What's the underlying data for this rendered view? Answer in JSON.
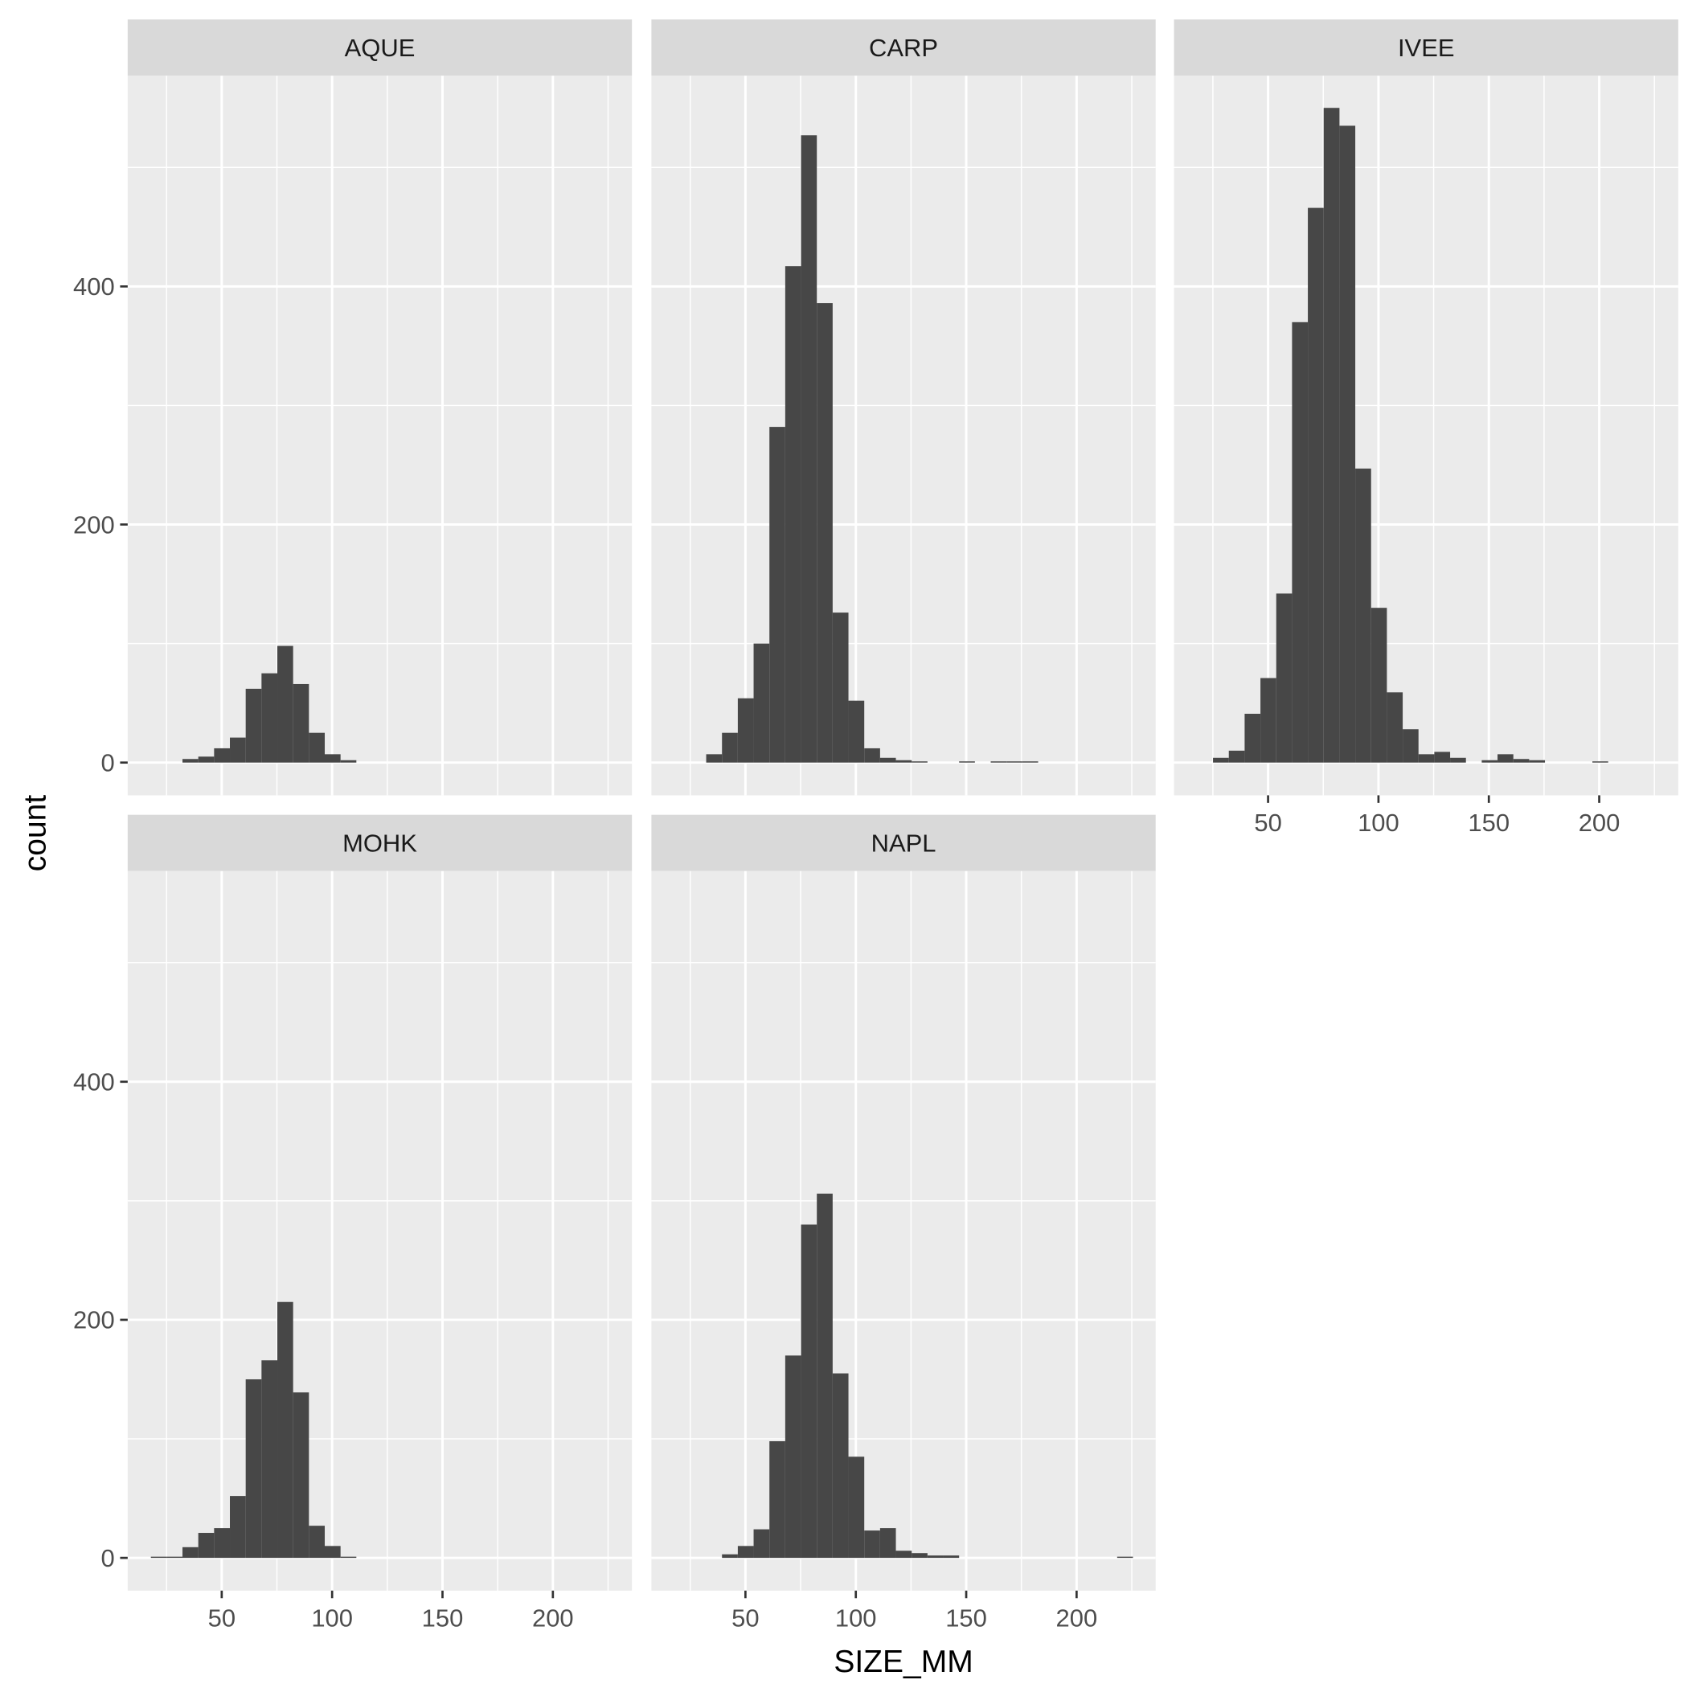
{
  "chart_data": {
    "type": "histogram",
    "x_label": "SIZE_MM",
    "y_label": "count",
    "color": "#474747",
    "panel_color": "#ebebeb",
    "strip_color": "#d9d9d9",
    "grid": true,
    "bins": [
      10.74,
      17.9,
      25.06,
      32.22,
      39.38,
      46.54,
      53.7,
      60.86,
      68.02,
      75.18,
      82.34,
      89.5,
      96.66,
      103.82,
      110.98,
      118.14,
      125.3,
      132.46,
      139.62,
      146.78,
      153.94,
      161.1,
      168.26,
      175.42,
      182.58,
      189.74,
      196.9,
      204.06,
      211.22,
      218.38,
      225.54
    ],
    "xlim": [
      7.4,
      235.8
    ],
    "xticks": [
      50,
      100,
      150,
      200
    ],
    "x_minor_ticks": [
      25,
      75,
      125,
      175,
      225
    ],
    "ylim": [
      -27.5,
      577
    ],
    "yticks": [
      0,
      200,
      400
    ],
    "y_minor_ticks": [
      100,
      300,
      500
    ],
    "facets": [
      {
        "name": "AQUE",
        "counts": [
          0,
          0,
          0,
          3,
          5,
          12,
          21,
          62,
          75,
          98,
          66,
          25,
          7,
          2,
          0,
          0,
          0,
          0,
          0,
          0,
          0,
          0,
          0,
          0,
          0,
          0,
          0,
          0,
          0,
          0
        ]
      },
      {
        "name": "CARP",
        "counts": [
          0,
          0,
          0,
          7,
          25,
          54,
          100,
          282,
          417,
          527,
          386,
          126,
          52,
          12,
          4,
          2,
          1,
          0,
          0,
          1,
          0,
          1,
          1,
          1,
          0,
          0,
          0,
          0,
          0,
          0
        ]
      },
      {
        "name": "IVEE",
        "counts": [
          0,
          0,
          4,
          10,
          41,
          71,
          142,
          370,
          466,
          550,
          535,
          247,
          130,
          59,
          28,
          7,
          9,
          4,
          0,
          2,
          7,
          3,
          2,
          0,
          0,
          0,
          1,
          0,
          0,
          0
        ]
      },
      {
        "name": "MOHK",
        "counts": [
          0,
          1,
          1,
          9,
          21,
          25,
          52,
          150,
          166,
          215,
          139,
          27,
          10,
          1,
          0,
          0,
          0,
          0,
          0,
          0,
          0,
          0,
          0,
          0,
          0,
          0,
          0,
          0,
          0,
          0
        ]
      },
      {
        "name": "NAPL",
        "counts": [
          0,
          0,
          0,
          0,
          3,
          10,
          24,
          98,
          170,
          280,
          306,
          155,
          85,
          23,
          25,
          6,
          4,
          2,
          2,
          0,
          0,
          0,
          0,
          0,
          0,
          0,
          0,
          0,
          0,
          1
        ]
      }
    ]
  }
}
